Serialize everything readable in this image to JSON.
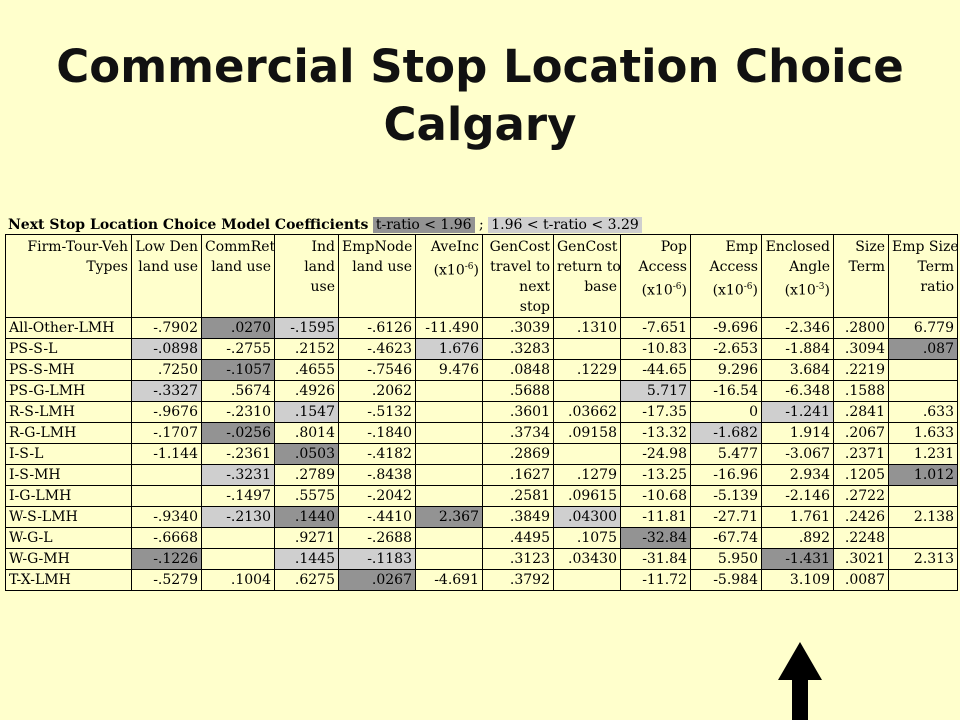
{
  "title": {
    "line1": "Commercial Stop Location Choice",
    "line2": "Calgary"
  },
  "caption": {
    "label": "Next Stop Location Choice Model Coefficients",
    "key_dark": "t-ratio < 1.96",
    "separator": " ; ",
    "key_light": "1.96 < t-ratio < 3.29"
  },
  "colors": {
    "background": "#ffffcc",
    "t_ratio_below_1_96": "#939393",
    "t_ratio_1_96_to_3_29": "#cfcfcf"
  },
  "columns": [
    [
      "Firm-Tour-Veh",
      "Types"
    ],
    [
      "Low Den",
      "land use"
    ],
    [
      "CommRet",
      "land use"
    ],
    [
      "Ind",
      "land",
      "use"
    ],
    [
      "EmpNode",
      "land use"
    ],
    [
      "AveInc",
      "",
      "(x10-6)"
    ],
    [
      "GenCost",
      "travel to",
      "next",
      "stop"
    ],
    [
      "GenCost",
      "return to",
      "base"
    ],
    [
      "Pop",
      "Access",
      "(x10-6)"
    ],
    [
      "Emp",
      "Access",
      "(x10-6)"
    ],
    [
      "Enclosed",
      "Angle",
      "(x10-3)"
    ],
    [
      "Size",
      "Term"
    ],
    [
      "Emp Size",
      "Term",
      "ratio"
    ]
  ],
  "rows": [
    {
      "cells": [
        "All-Other-LMH",
        "-.7902",
        ".0270",
        "-.1595",
        "-.6126",
        "-11.490",
        ".3039",
        ".1310",
        "-7.651",
        "-9.696",
        "-2.346",
        ".2800",
        "6.779"
      ],
      "shade": [
        "",
        "",
        "d",
        "l",
        "",
        "",
        "",
        "",
        "",
        "",
        "",
        "",
        ""
      ]
    },
    {
      "cells": [
        "PS-S-L",
        "-.0898",
        "-.2755",
        ".2152",
        "-.4623",
        "1.676",
        ".3283",
        "",
        "-10.83",
        "-2.653",
        "-1.884",
        ".3094",
        ".087"
      ],
      "shade": [
        "",
        "l",
        "",
        "",
        "",
        "l",
        "",
        "",
        "",
        "",
        "",
        "",
        "d"
      ]
    },
    {
      "cells": [
        "PS-S-MH",
        ".7250",
        "-.1057",
        ".4655",
        "-.7546",
        "9.476",
        ".0848",
        ".1229",
        "-44.65",
        "9.296",
        "3.684",
        ".2219",
        ""
      ],
      "shade": [
        "",
        "",
        "d",
        "",
        "",
        "",
        "",
        "",
        "",
        "",
        "",
        "",
        ""
      ]
    },
    {
      "cells": [
        "PS-G-LMH",
        "-.3327",
        ".5674",
        ".4926",
        ".2062",
        "",
        ".5688",
        "",
        "5.717",
        "-16.54",
        "-6.348",
        ".1588",
        ""
      ],
      "shade": [
        "",
        "l",
        "",
        "",
        "",
        "",
        "",
        "",
        "l",
        "",
        "",
        "",
        ""
      ]
    },
    {
      "cells": [
        "R-S-LMH",
        "-.9676",
        "-.2310",
        ".1547",
        "-.5132",
        "",
        ".3601",
        ".03662",
        "-17.35",
        "0",
        "-1.241",
        ".2841",
        ".633"
      ],
      "shade": [
        "",
        "",
        "",
        "l",
        "",
        "",
        "",
        "",
        "",
        "",
        "l",
        "",
        ""
      ]
    },
    {
      "cells": [
        "R-G-LMH",
        "-.1707",
        "-.0256",
        ".8014",
        "-.1840",
        "",
        ".3734",
        ".09158",
        "-13.32",
        "-1.682",
        "1.914",
        ".2067",
        "1.633"
      ],
      "shade": [
        "",
        "",
        "d",
        "",
        "",
        "",
        "",
        "",
        "",
        "l",
        "",
        "",
        ""
      ]
    },
    {
      "cells": [
        "I-S-L",
        "-1.144",
        "-.2361",
        ".0503",
        "-.4182",
        "",
        ".2869",
        "",
        "-24.98",
        "5.477",
        "-3.067",
        ".2371",
        "1.231"
      ],
      "shade": [
        "",
        "",
        "",
        "d",
        "",
        "",
        "",
        "",
        "",
        "",
        "",
        "",
        ""
      ]
    },
    {
      "cells": [
        "I-S-MH",
        "",
        "-.3231",
        ".2789",
        "-.8438",
        "",
        ".1627",
        ".1279",
        "-13.25",
        "-16.96",
        "2.934",
        ".1205",
        "1.012"
      ],
      "shade": [
        "",
        "",
        "l",
        "",
        "",
        "",
        "",
        "",
        "",
        "",
        "",
        "",
        "d"
      ]
    },
    {
      "cells": [
        "I-G-LMH",
        "",
        "-.1497",
        ".5575",
        "-.2042",
        "",
        ".2581",
        ".09615",
        "-10.68",
        "-5.139",
        "-2.146",
        ".2722",
        ""
      ],
      "shade": [
        "",
        "",
        "",
        "",
        "",
        "",
        "",
        "",
        "",
        "",
        "",
        "",
        ""
      ]
    },
    {
      "cells": [
        "W-S-LMH",
        "-.9340",
        "-.2130",
        ".1440",
        "-.4410",
        "2.367",
        ".3849",
        ".04300",
        "-11.81",
        "-27.71",
        "1.761",
        ".2426",
        "2.138"
      ],
      "shade": [
        "",
        "",
        "l",
        "d",
        "",
        "d",
        "",
        "l",
        "",
        "",
        "",
        "",
        ""
      ]
    },
    {
      "cells": [
        "W-G-L",
        "-.6668",
        "",
        ".9271",
        "-.2688",
        "",
        ".4495",
        ".1075",
        "-32.84",
        "-67.74",
        ".892",
        ".2248",
        ""
      ],
      "shade": [
        "",
        "",
        "",
        "",
        "",
        "",
        "",
        "",
        "d",
        "",
        "",
        "",
        ""
      ]
    },
    {
      "cells": [
        "W-G-MH",
        "-.1226",
        "",
        ".1445",
        "-.1183",
        "",
        ".3123",
        ".03430",
        "-31.84",
        "5.950",
        "-1.431",
        ".3021",
        "2.313"
      ],
      "shade": [
        "",
        "d",
        "",
        "l",
        "l",
        "",
        "",
        "",
        "",
        "",
        "d",
        "",
        ""
      ]
    },
    {
      "cells": [
        "T-X-LMH",
        "-.5279",
        ".1004",
        ".6275",
        ".0267",
        "-4.691",
        ".3792",
        "",
        "-11.72",
        "-5.984",
        "3.109",
        ".0087",
        ""
      ],
      "shade": [
        "",
        "",
        "",
        "",
        "d",
        "",
        "",
        "",
        "",
        "",
        "",
        "",
        ""
      ]
    }
  ]
}
